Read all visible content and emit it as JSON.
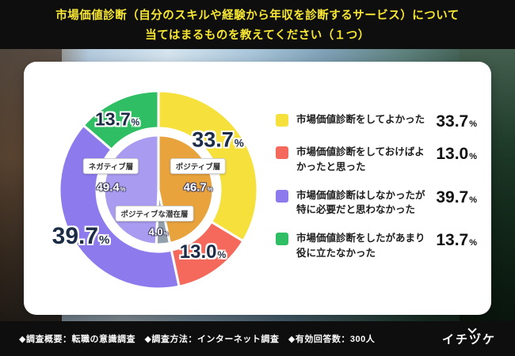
{
  "header": {
    "line1": "市場価値診断（自分のスキルや経験から年収を診断するサービス）について",
    "line2": "当てはまるものを教えてください（１つ）"
  },
  "chart_data": {
    "type": "pie",
    "title": "市場価値診断（自分のスキルや経験から年収を診断するサービス）について当てはまるものを教えてください（１つ）",
    "unit": "%",
    "legend_position": "right",
    "outer": {
      "segments": [
        {
          "label": "市場価値診断をしてよかった",
          "value": 33.7,
          "display": "33.7",
          "color": "#f6e03c"
        },
        {
          "label": "市場価値診断をしておけばよかったと思った",
          "value": 13.0,
          "display": "13.0",
          "color": "#f4695c"
        },
        {
          "label": "市場価値診断はしなかったが特に必要だと思わなかった",
          "value": 39.7,
          "display": "39.7",
          "color": "#8d7bee"
        },
        {
          "label": "市場価値診断をしたがあまり役に立たなかった",
          "value": 13.7,
          "display": "13.7",
          "color": "#2fbe63"
        }
      ]
    },
    "inner": {
      "segments": [
        {
          "label": "ポジティブ層",
          "value": 46.7,
          "display": "46.7",
          "color": "#e8a33d"
        },
        {
          "label": "ポジティブな潜在層",
          "value": 4.0,
          "display": "4.0",
          "color": "#93a0ab"
        },
        {
          "label": "ネガティブ層",
          "value": 49.4,
          "display": "49.4",
          "color": "#a89bf0"
        }
      ]
    }
  },
  "footer": {
    "survey_info": "◆調査概要：転職の意識調査　◆調査方法：インターネット調査　◆有効回答数：300人",
    "logo": "イチヅケ"
  }
}
